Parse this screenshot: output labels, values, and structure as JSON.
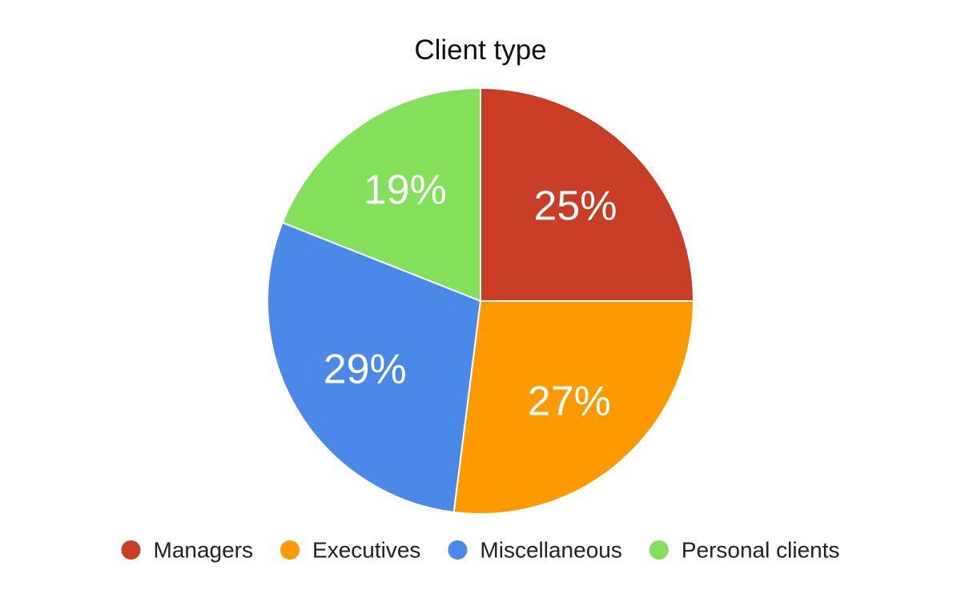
{
  "chart_data": {
    "type": "pie",
    "title": "Client type",
    "categories": [
      "Managers",
      "Executives",
      "Miscellaneous",
      "Personal clients"
    ],
    "values": [
      25,
      27,
      29,
      19
    ],
    "value_labels": [
      "25%",
      "27%",
      "29%",
      "19%"
    ],
    "colors": [
      "#C93C25",
      "#FF9900",
      "#4A89E8",
      "#84E05A"
    ],
    "legend_position": "bottom",
    "start_angle": "12 o'clock",
    "direction": "clockwise"
  }
}
